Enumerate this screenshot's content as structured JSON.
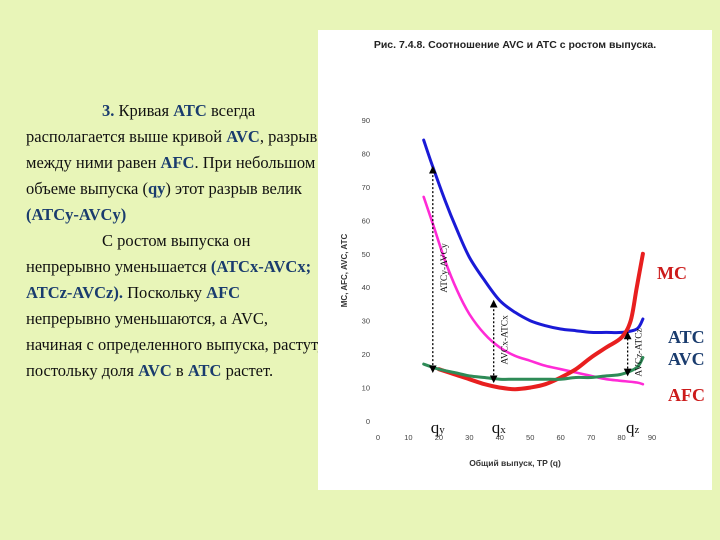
{
  "text": {
    "p1_num": "3.",
    "p1_a": " Кривая ",
    "p1_b": "ATC",
    "p1_c": " всегда располагается выше кривой ",
    "p1_d": "AVC",
    "p1_e": ", разрыв между ними равен ",
    "p1_f": "AFC",
    "p1_g": ". При небольшом объеме выпуска (",
    "p1_h": "qy",
    "p1_i": ") этот разрыв велик ",
    "p1_j": "(ATCy-AVCy)",
    "p2_a": "С ростом выпуска он непрерывно уменьшается ",
    "p2_b": "(ATCx-AVCx; ATCz-AVCz).",
    "p2_c": " Поскольку ",
    "p2_d": "AFC",
    "p2_e": " непрерывно уменьшаются, а ",
    "p2_f": "AVC",
    "p2_g": ", начиная с определенного выпуска, растут, постольку доля ",
    "p2_h": "AVC",
    "p2_i": " в ",
    "p2_j": "ATC",
    "p2_k": " растет."
  },
  "chart_title": "Рис. 7.4.8. Соотношение AVC и ATC с ростом выпуска.",
  "colors": {
    "background": "#e8f5b8",
    "panel": "#ffffff",
    "ATC": "#1a1ad6",
    "AVC": "#2e8b57",
    "AFC": "#ff2bd6",
    "MC": "#e81f1f",
    "label_MC": "#cc1b1b",
    "label_ATC": "#1a3c6e",
    "label_AFC": "#cc1b1b"
  },
  "chart_data": {
    "type": "line",
    "title": "Рис. 7.4.8. Соотношение AVC и ATC с ростом выпуска.",
    "xlabel": "Общий выпуск, TP (q)",
    "ylabel": "MC, AFC, AVC, ATC",
    "xlim": [
      0,
      90
    ],
    "ylim": [
      0,
      90
    ],
    "xticks": [
      0,
      10,
      20,
      30,
      40,
      50,
      60,
      70,
      80,
      90
    ],
    "yticks": [
      0,
      10,
      20,
      30,
      40,
      50,
      60,
      70,
      80,
      90
    ],
    "grid": false,
    "series": [
      {
        "name": "ATC",
        "x": [
          15,
          18,
          22,
          26,
          30,
          35,
          40,
          45,
          50,
          55,
          60,
          65,
          70,
          75,
          80,
          85,
          87
        ],
        "y": [
          84,
          76,
          66,
          57,
          49,
          42,
          36,
          32.5,
          30,
          28.5,
          27.5,
          27,
          26.5,
          26.5,
          26.5,
          27.5,
          30.5
        ]
      },
      {
        "name": "AVC",
        "x": [
          15,
          20,
          25,
          30,
          35,
          40,
          45,
          50,
          55,
          60,
          65,
          70,
          75,
          80,
          85,
          87
        ],
        "y": [
          17,
          15.5,
          14.5,
          13.5,
          13,
          12.5,
          12.5,
          12.5,
          12.5,
          12.5,
          13,
          13,
          13.5,
          14,
          16,
          19
        ]
      },
      {
        "name": "AFC",
        "x": [
          15,
          18,
          22,
          26,
          30,
          35,
          40,
          45,
          50,
          55,
          60,
          65,
          70,
          75,
          80,
          85,
          87
        ],
        "y": [
          67,
          59,
          48,
          39,
          32,
          26,
          22,
          19.5,
          18,
          16.5,
          15.5,
          14.5,
          13.5,
          12.5,
          12,
          11.5,
          11
        ]
      },
      {
        "name": "MC",
        "x": [
          20,
          25,
          30,
          35,
          40,
          45,
          50,
          55,
          60,
          65,
          70,
          75,
          80,
          83,
          85,
          87
        ],
        "y": [
          15.5,
          14,
          12.5,
          11,
          10,
          9.5,
          10,
          11,
          13,
          15.5,
          19,
          22,
          25,
          30,
          40,
          50
        ]
      }
    ],
    "markers": [
      {
        "label": "qy",
        "x": 18,
        "atc": 76,
        "avc": 15.5,
        "bracket_label": "ATCy-AVCy"
      },
      {
        "label": "qx",
        "x": 38,
        "atc": 36,
        "avc": 12.5,
        "bracket_label": "AVCx-ATCx"
      },
      {
        "label": "qz",
        "x": 82,
        "atc": 26.5,
        "avc": 14.5,
        "bracket_label": "AVCz-ATCz"
      }
    ],
    "curve_labels": [
      "MC",
      "ATC",
      "AVC",
      "AFC"
    ]
  }
}
